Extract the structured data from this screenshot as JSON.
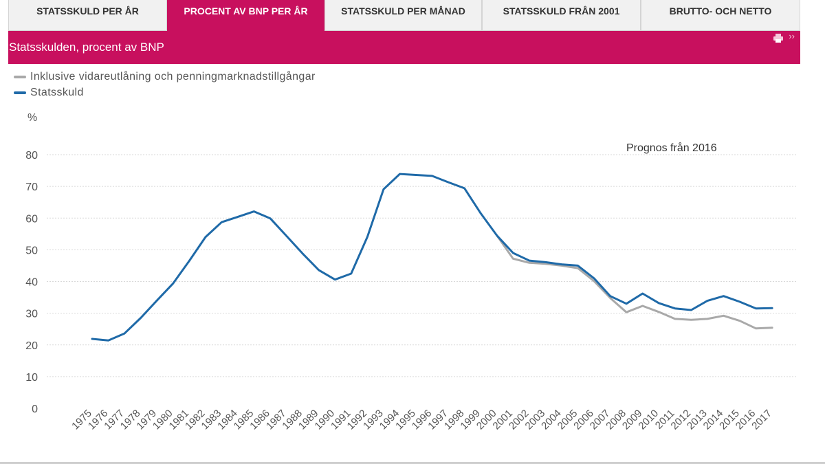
{
  "tabs": [
    {
      "label": "STATSSKULD PER ÅR",
      "active": false
    },
    {
      "label": "PROCENT AV BNP PER ÅR",
      "active": true
    },
    {
      "label": "STATSSKULD PER MÅNAD",
      "active": false
    },
    {
      "label": "STATSSKULD FRÅN 2001",
      "active": false
    },
    {
      "label": "BRUTTO- OCH NETTO",
      "active": false
    }
  ],
  "header": {
    "title": "Statsskulden, procent av BNP",
    "print_icon": "print-icon",
    "more_icon": "chevrons-right-icon"
  },
  "colors": {
    "accent": "#c8105e",
    "statsskuld": "#1f6aa8",
    "inklusive": "#a9a9a9",
    "grid": "#d9d9d9",
    "text": "#555555"
  },
  "chart_data": {
    "type": "line",
    "title": "Statsskulden, procent av BNP",
    "ylabel": "%",
    "xlabel": "",
    "ylim": [
      0,
      80
    ],
    "yticks": [
      0,
      10,
      20,
      30,
      40,
      50,
      60,
      70,
      80
    ],
    "grid": true,
    "legend_position": "top-left",
    "annotation": "Prognos från 2016",
    "categories": [
      "1975",
      "1976",
      "1977",
      "1978",
      "1979",
      "1980",
      "1981",
      "1982",
      "1983",
      "1984",
      "1985",
      "1986",
      "1987",
      "1988",
      "1989",
      "1990",
      "1991",
      "1992",
      "1993",
      "1994",
      "1995",
      "1996",
      "1997",
      "1998",
      "1999",
      "2000",
      "2001",
      "2002",
      "2003",
      "2004",
      "2005",
      "2006",
      "2007",
      "2008",
      "2009",
      "2010",
      "2011",
      "2012",
      "2013",
      "2014",
      "2015",
      "2016",
      "2017"
    ],
    "series": [
      {
        "name": "Inklusive vidareutlåning och penningmarknadstillgångar",
        "color": "#a9a9a9",
        "values": [
          null,
          null,
          null,
          null,
          null,
          null,
          null,
          null,
          null,
          null,
          null,
          null,
          null,
          null,
          null,
          null,
          null,
          null,
          null,
          null,
          null,
          null,
          null,
          null,
          null,
          54.5,
          47.2,
          45.9,
          45.6,
          45.0,
          44.2,
          40.1,
          34.8,
          30.3,
          32.3,
          30.4,
          28.2,
          27.9,
          28.2,
          29.2,
          27.6,
          25.2,
          25.4
        ]
      },
      {
        "name": "Statsskuld",
        "color": "#1f6aa8",
        "values": [
          21.9,
          21.4,
          23.6,
          28.5,
          34.0,
          39.4,
          46.5,
          54.0,
          58.7,
          60.4,
          62.1,
          59.9,
          54.4,
          48.8,
          43.6,
          40.6,
          42.5,
          54.1,
          69.1,
          73.9,
          73.6,
          73.3,
          71.3,
          69.4,
          61.5,
          54.5,
          49.0,
          46.6,
          46.1,
          45.4,
          45.0,
          41.0,
          35.4,
          33.0,
          36.2,
          33.2,
          31.5,
          31.0,
          33.9,
          35.4,
          33.6,
          31.5,
          31.6
        ]
      }
    ]
  }
}
